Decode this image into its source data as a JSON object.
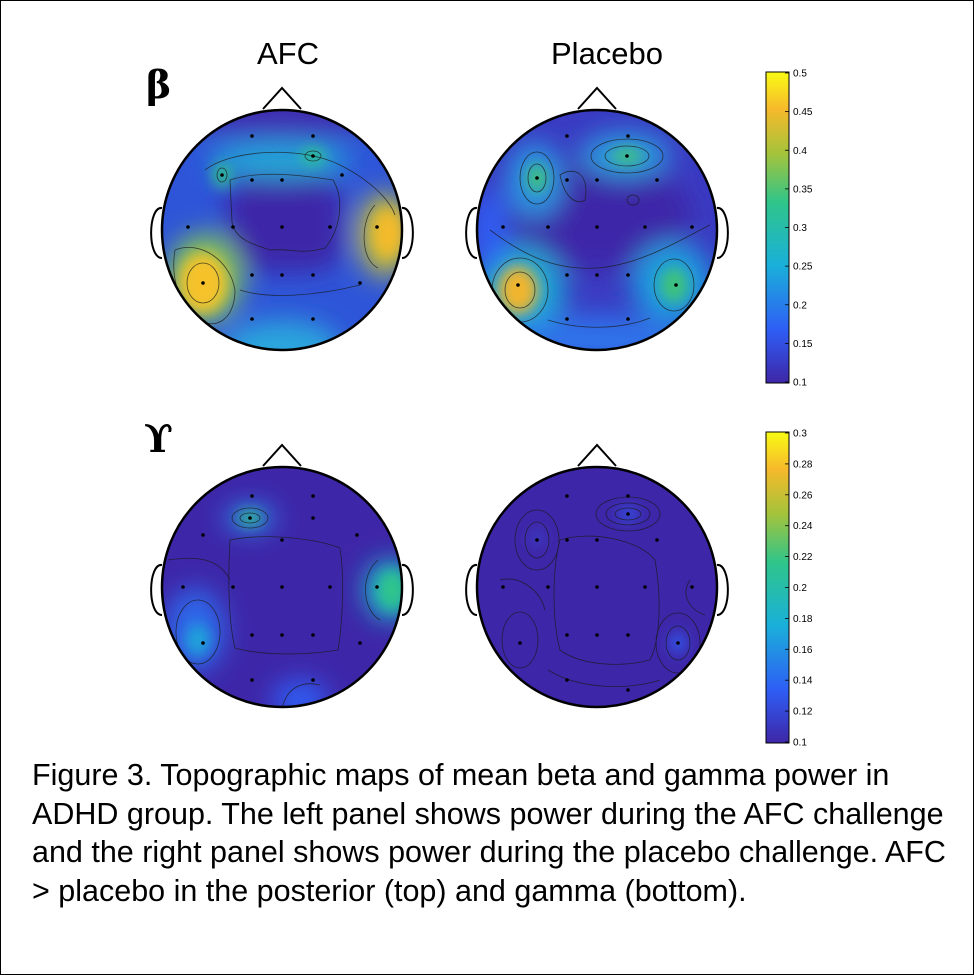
{
  "columns": {
    "left": "AFC",
    "right": "Placebo"
  },
  "bands": {
    "beta": "β",
    "gamma": "ϒ"
  },
  "colorbars": {
    "beta": {
      "range": [
        0.1,
        0.5
      ],
      "ticks": [
        "0.5",
        "0.45",
        "0.4",
        "0.35",
        "0.3",
        "0.25",
        "0.2",
        "0.15",
        "0.1"
      ]
    },
    "gamma": {
      "range": [
        0.1,
        0.3
      ],
      "ticks": [
        "0.3",
        "0.28",
        "0.26",
        "0.24",
        "0.22",
        "0.2",
        "0.18",
        "0.16",
        "0.14",
        "0.12",
        "0.1"
      ]
    }
  },
  "colormap": [
    "#3e26a8",
    "#2e5ef5",
    "#1ab0d9",
    "#2fc58a",
    "#a6c33a",
    "#f6b92b",
    "#f9fb15"
  ],
  "caption": "Figure 3.  Topographic maps of mean beta and gamma power in ADHD group. The left panel shows power during the AFC challenge and the right panel shows power during the placebo challenge. AFC > placebo in the posterior (top) and gamma (bottom)."
}
